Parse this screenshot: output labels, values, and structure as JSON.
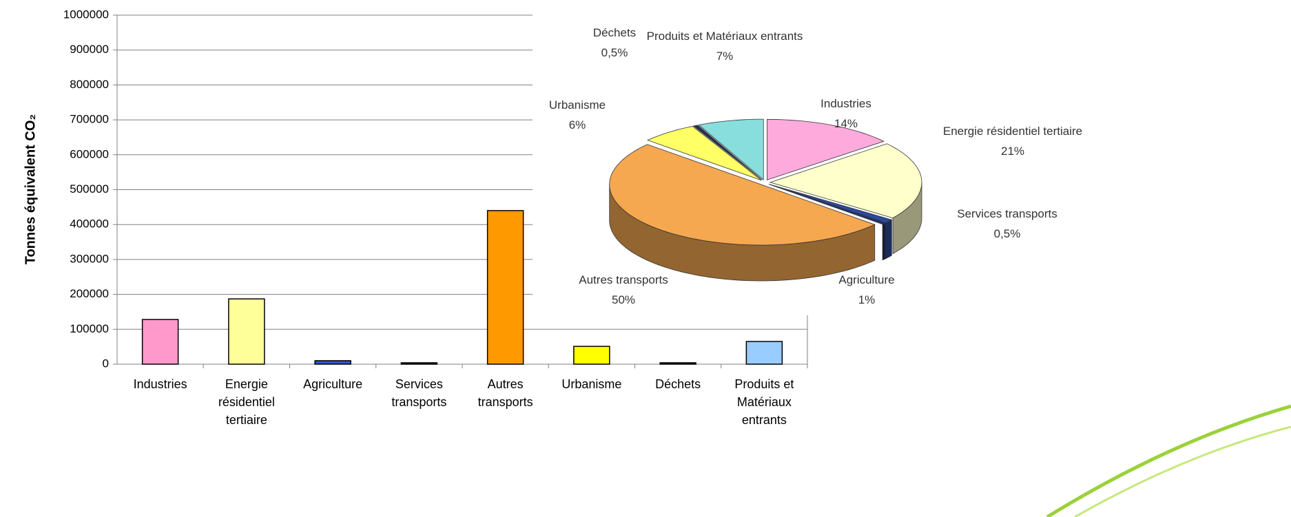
{
  "chart_data": [
    {
      "type": "bar",
      "ylabel": "Tonnes équivalent CO₂",
      "categories": [
        "Industries",
        "Energie résidentiel tertiaire",
        "Agriculture",
        "Services transports",
        "Autres transports",
        "Urbanisme",
        "Déchets",
        "Produits et Matériaux entrants"
      ],
      "values": [
        128000,
        187000,
        10000,
        4000,
        440000,
        51000,
        4000,
        65000
      ],
      "colors": [
        "#ff99cc",
        "#ffff99",
        "#3355cc",
        "#111111",
        "#ff9900",
        "#ffff00",
        "#111111",
        "#99ccff"
      ],
      "ylim": [
        0,
        1000000
      ],
      "yticks": [
        0,
        100000,
        200000,
        300000,
        400000,
        500000,
        600000,
        700000,
        800000,
        900000,
        1000000
      ],
      "grid": true
    },
    {
      "type": "pie",
      "categories": [
        "Industries",
        "Energie résidentiel tertiaire",
        "Agriculture",
        "Services transports",
        "Autres transports",
        "Urbanisme",
        "Déchets",
        "Produits et Matériaux entrants"
      ],
      "values": [
        14,
        21,
        1,
        0.5,
        50,
        6,
        0.5,
        7
      ],
      "value_labels": [
        "14%",
        "21%",
        "1%",
        "0,5%",
        "50%",
        "6%",
        "0,5%",
        "7%"
      ],
      "colors": [
        "#ffaadd",
        "#ffffcc",
        "#2a4aa0",
        "#223366",
        "#f5a850",
        "#ffff66",
        "#223355",
        "#88dddd"
      ]
    }
  ]
}
